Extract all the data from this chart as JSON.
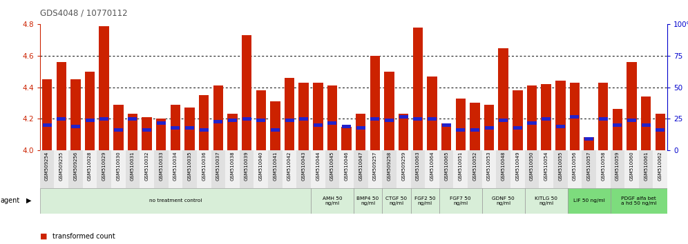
{
  "title": "GDS4048 / 10770112",
  "categories": [
    "GSM509254",
    "GSM509255",
    "GSM509256",
    "GSM510028",
    "GSM510029",
    "GSM510030",
    "GSM510031",
    "GSM510032",
    "GSM510033",
    "GSM510034",
    "GSM510035",
    "GSM510036",
    "GSM510037",
    "GSM510038",
    "GSM510039",
    "GSM510040",
    "GSM510041",
    "GSM510042",
    "GSM510043",
    "GSM510044",
    "GSM510045",
    "GSM510046",
    "GSM510047",
    "GSM509257",
    "GSM509258",
    "GSM509259",
    "GSM510063",
    "GSM510064",
    "GSM510065",
    "GSM510051",
    "GSM510052",
    "GSM510053",
    "GSM510048",
    "GSM510049",
    "GSM510050",
    "GSM510054",
    "GSM510055",
    "GSM510056",
    "GSM510057",
    "GSM510058",
    "GSM510059",
    "GSM510060",
    "GSM510061",
    "GSM510062"
  ],
  "red_values": [
    4.45,
    4.56,
    4.45,
    4.5,
    4.79,
    4.29,
    4.23,
    4.21,
    4.2,
    4.29,
    4.27,
    4.35,
    4.41,
    4.23,
    4.73,
    4.38,
    4.31,
    4.46,
    4.43,
    4.43,
    4.41,
    4.15,
    4.23,
    4.6,
    4.5,
    4.23,
    4.78,
    4.47,
    4.17,
    4.33,
    4.3,
    4.29,
    4.65,
    4.38,
    4.41,
    4.42,
    4.44,
    4.43,
    4.08,
    4.43,
    4.26,
    4.56,
    4.34,
    4.23
  ],
  "blue_values": [
    4.16,
    4.2,
    4.15,
    4.19,
    4.2,
    4.13,
    4.2,
    4.13,
    4.17,
    4.14,
    4.14,
    4.13,
    4.18,
    4.19,
    4.2,
    4.19,
    4.13,
    4.19,
    4.2,
    4.16,
    4.17,
    4.15,
    4.14,
    4.2,
    4.19,
    4.21,
    4.2,
    4.2,
    4.16,
    4.13,
    4.13,
    4.14,
    4.19,
    4.14,
    4.17,
    4.2,
    4.15,
    4.21,
    4.07,
    4.2,
    4.16,
    4.19,
    4.16,
    4.13
  ],
  "ylim": [
    4.0,
    4.8
  ],
  "yticks_left": [
    4.0,
    4.2,
    4.4,
    4.6,
    4.8
  ],
  "yticks_right": [
    0,
    25,
    50,
    75,
    100
  ],
  "agent_groups": [
    {
      "name": "no treatment control",
      "start": 0,
      "end": 19,
      "color": "#d8eed8"
    },
    {
      "name": "AMH 50\nng/ml",
      "start": 19,
      "end": 22,
      "color": "#d8eed8"
    },
    {
      "name": "BMP4 50\nng/ml",
      "start": 22,
      "end": 24,
      "color": "#d8eed8"
    },
    {
      "name": "CTGF 50\nng/ml",
      "start": 24,
      "end": 26,
      "color": "#d8eed8"
    },
    {
      "name": "FGF2 50\nng/ml",
      "start": 26,
      "end": 28,
      "color": "#d8eed8"
    },
    {
      "name": "FGF7 50\nng/ml",
      "start": 28,
      "end": 31,
      "color": "#d8eed8"
    },
    {
      "name": "GDNF 50\nng/ml",
      "start": 31,
      "end": 34,
      "color": "#d8eed8"
    },
    {
      "name": "KITLG 50\nng/ml",
      "start": 34,
      "end": 37,
      "color": "#d8eed8"
    },
    {
      "name": "LIF 50 ng/ml",
      "start": 37,
      "end": 40,
      "color": "#7ddc7d"
    },
    {
      "name": "PDGF alfa bet\na hd 50 ng/ml",
      "start": 40,
      "end": 44,
      "color": "#7ddc7d"
    }
  ],
  "bar_color_red": "#cc2200",
  "bar_color_blue": "#2222cc",
  "left_axis_color": "#cc2200",
  "right_axis_color": "#0000cc",
  "title_color": "#555555",
  "grid_color": "black",
  "base": 4.0
}
